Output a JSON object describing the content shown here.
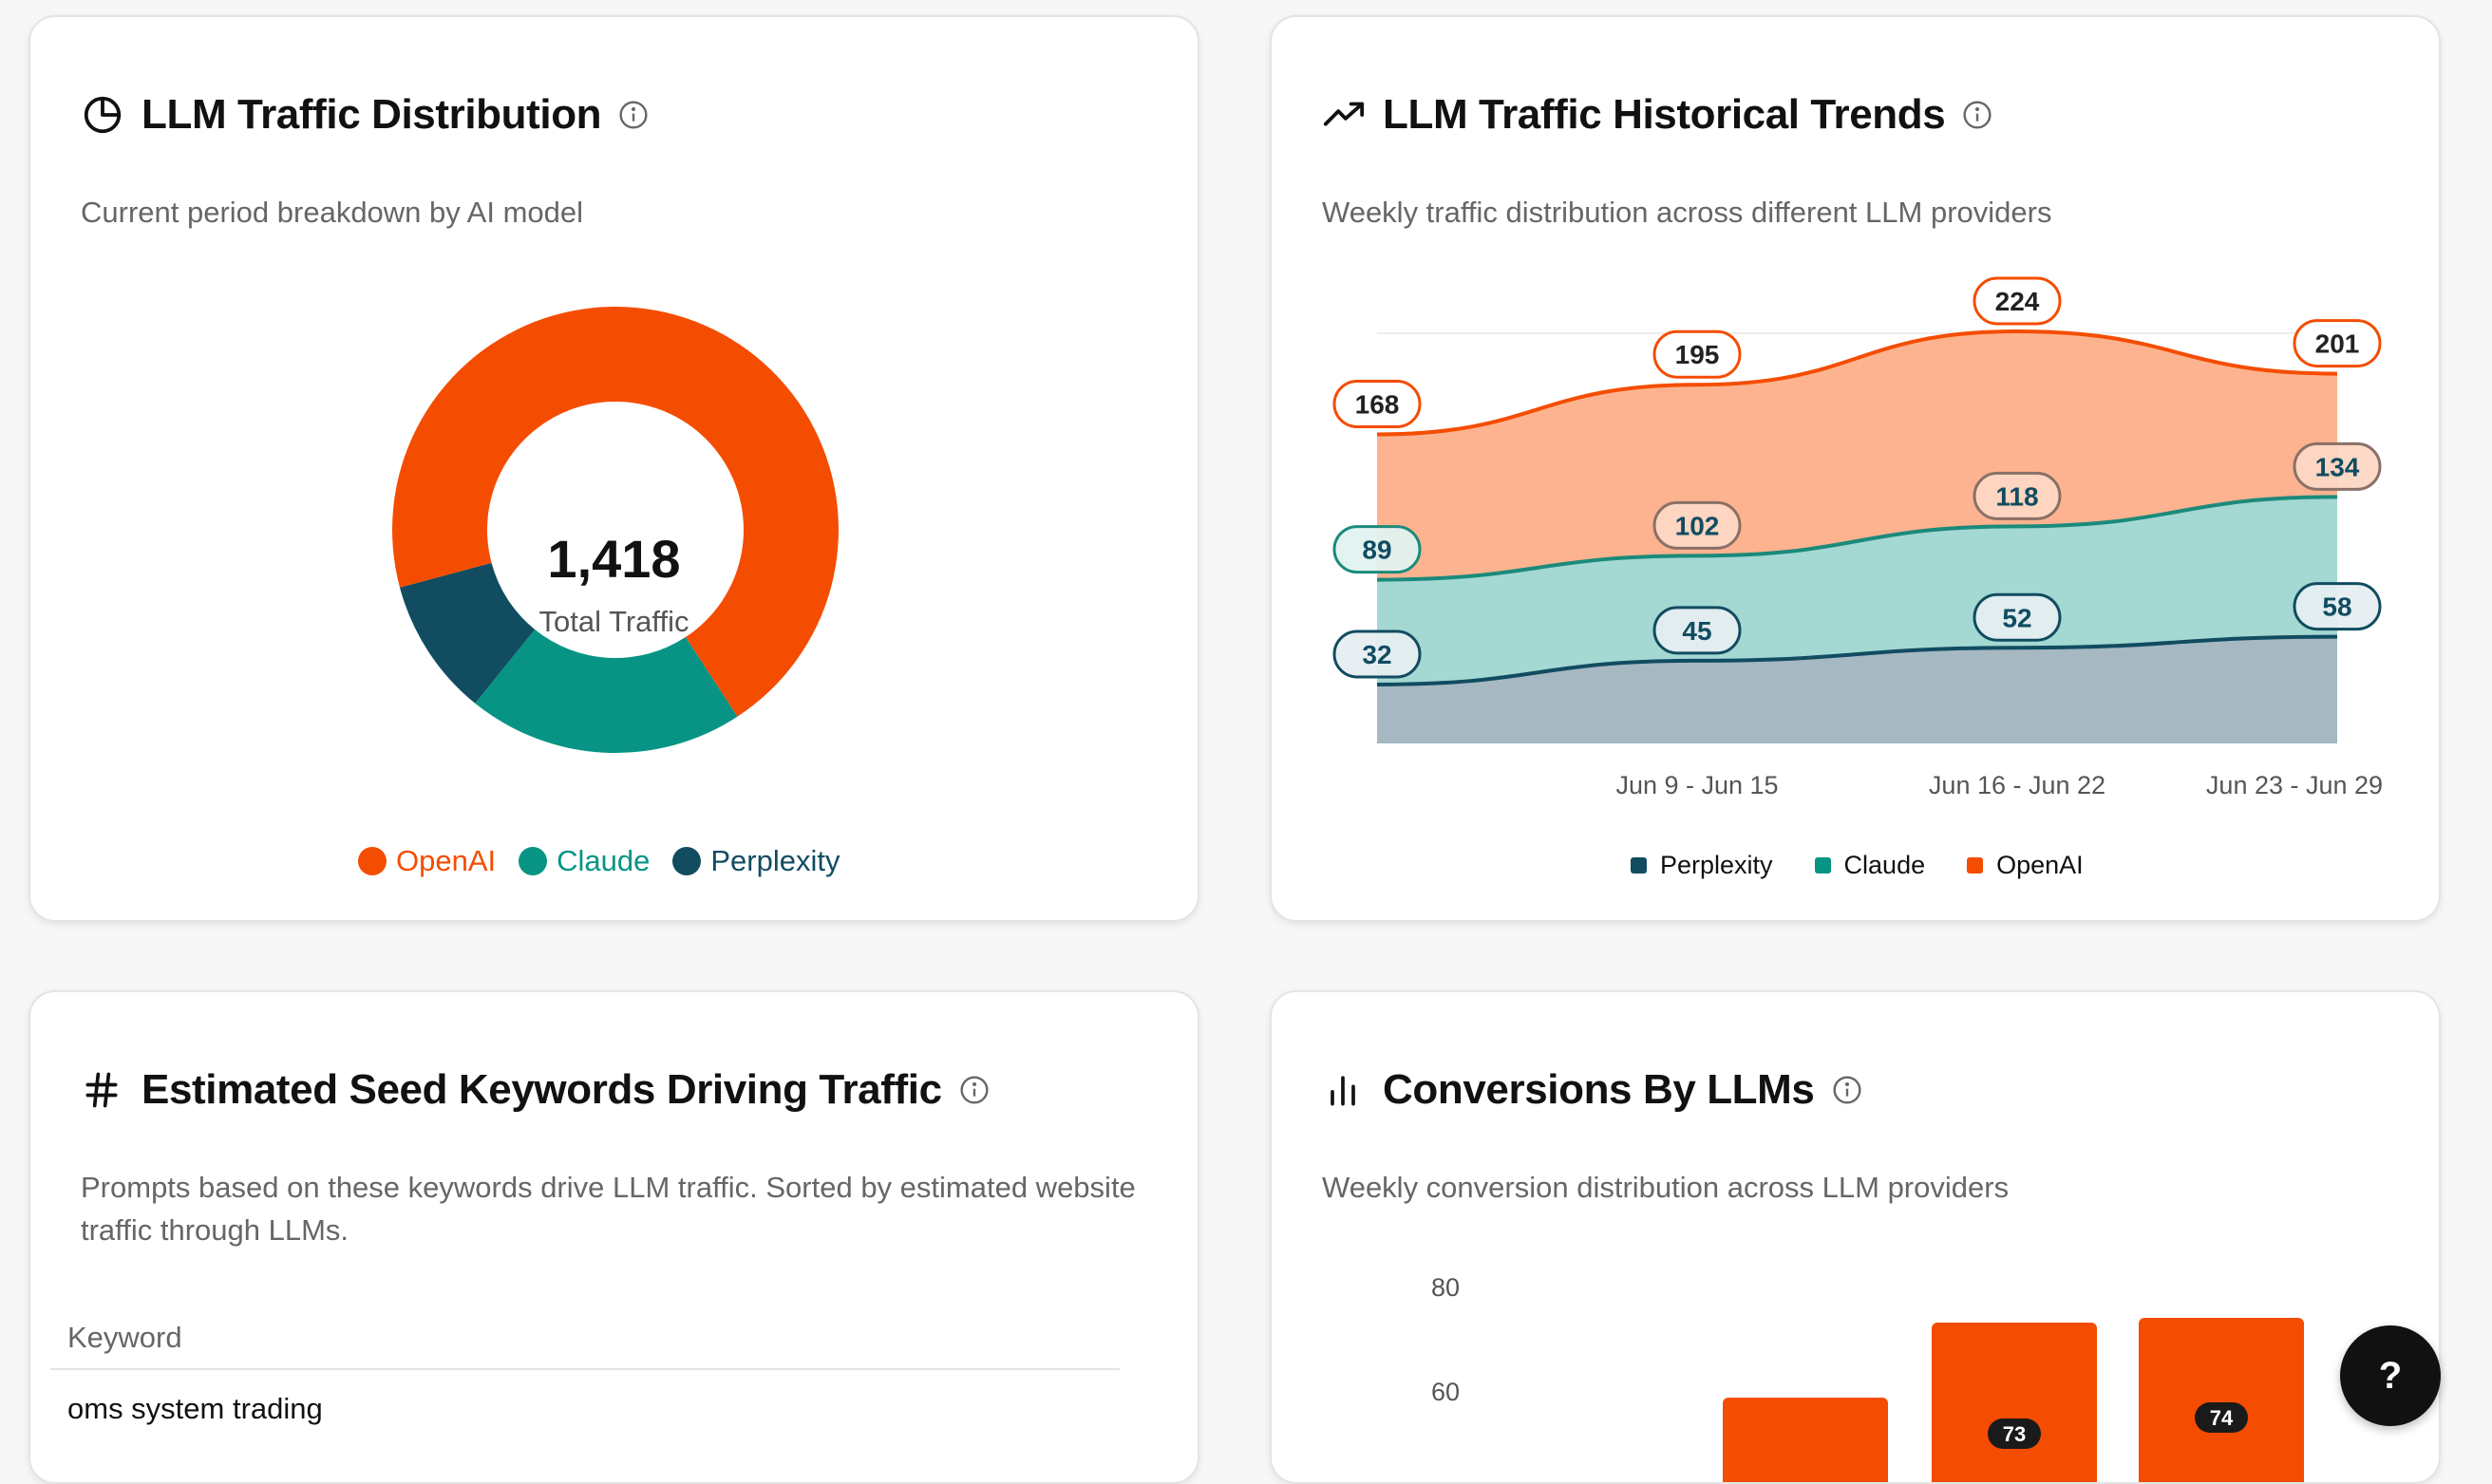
{
  "distribution": {
    "title": "LLM Traffic Distribution",
    "subtitle": "Current period breakdown by AI model",
    "total_value": "1,418",
    "total_label": "Total Traffic",
    "icons": {
      "title": "pie-chart-icon",
      "info": "info-icon"
    },
    "legend": [
      {
        "label": "OpenAI",
        "color": "#f44d02"
      },
      {
        "label": "Claude",
        "color": "#079485"
      },
      {
        "label": "Perplexity",
        "color": "#114c61"
      }
    ]
  },
  "trends": {
    "title": "LLM Traffic Historical Trends",
    "subtitle": "Weekly traffic distribution across different LLM providers",
    "icons": {
      "title": "trending-up-icon",
      "info": "info-icon"
    },
    "legend": [
      {
        "label": "Perplexity",
        "color": "#114c61"
      },
      {
        "label": "Claude",
        "color": "#079485"
      },
      {
        "label": "OpenAI",
        "color": "#f44d02"
      }
    ]
  },
  "keywords": {
    "title": "Estimated Seed Keywords Driving Traffic",
    "subtitle": "Prompts based on these keywords drive LLM traffic. Sorted by estimated website traffic through LLMs.",
    "column_header": "Keyword",
    "rows": [
      "oms system trading"
    ],
    "icons": {
      "title": "hash-icon",
      "info": "info-icon"
    }
  },
  "conversions": {
    "title": "Conversions By LLMs",
    "subtitle": "Weekly conversion distribution across LLM providers",
    "icons": {
      "title": "bar-chart-icon",
      "info": "info-icon"
    }
  },
  "help_button": {
    "label": "?",
    "icon": "help-icon"
  },
  "chart_data": [
    {
      "type": "pie",
      "donut": true,
      "labels": [
        "OpenAI",
        "Claude",
        "Perplexity"
      ],
      "values": [
        992,
        284,
        142
      ],
      "colors": [
        "#f44d02",
        "#079485",
        "#114c61"
      ],
      "total": 1418
    },
    {
      "type": "area",
      "stacked": true,
      "categories": [
        "",
        "Jun 9 - Jun 15",
        "Jun 16 - Jun 22",
        "Jun 23 - Jun 29"
      ],
      "series": [
        {
          "name": "Perplexity",
          "values": [
            32,
            45,
            52,
            58
          ],
          "color": "#114c61"
        },
        {
          "name": "Claude",
          "values": [
            89,
            102,
            118,
            134
          ],
          "color": "#079485"
        },
        {
          "name": "OpenAI",
          "values": [
            168,
            195,
            224,
            201
          ],
          "color": "#f44d02"
        }
      ],
      "ylim": [
        0,
        230
      ],
      "grid": false,
      "legend": "bottom"
    },
    {
      "type": "bar",
      "yticks": [
        60,
        80
      ],
      "ylim": [
        0,
        80
      ],
      "series": [
        {
          "values": [
            null,
            73,
            74
          ],
          "labels": [
            "",
            "73",
            "74"
          ],
          "color": "#f44d02"
        }
      ],
      "partial": true
    }
  ]
}
